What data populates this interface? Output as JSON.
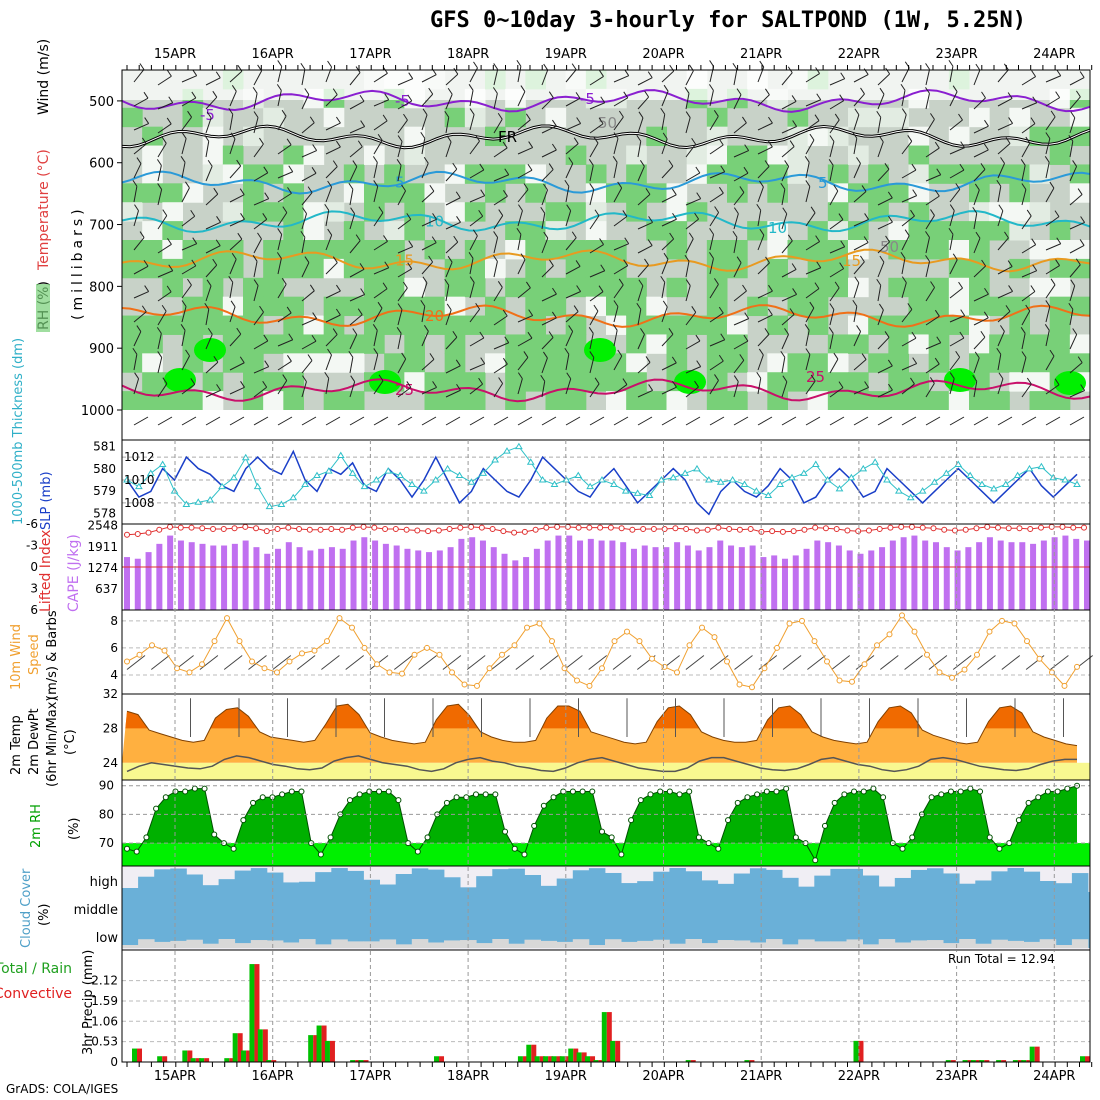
{
  "title": "GFS 0~10day 3-hourly for SALTPOND (1W, 5.25N)",
  "footer": "GrADS: COLA/IGES",
  "chart_data": [
    {
      "type": "heatmap",
      "panel": "upper-air",
      "ylabel": "(millibars)",
      "legend_labels": [
        "RH (%)",
        "Temperature (°C)",
        "Wind (m/s)"
      ],
      "y_ticks": [
        500,
        600,
        700,
        800,
        900,
        1000
      ],
      "ylim": [
        1000,
        450
      ],
      "x_labels": [
        "15APR",
        "16APR",
        "17APR",
        "18APR",
        "19APR",
        "20APR",
        "21APR",
        "22APR",
        "23APR",
        "24APR"
      ],
      "contour_labels": [
        "-5",
        "FR",
        "5",
        "10",
        "15",
        "20",
        "25",
        "50"
      ],
      "temperature_contours": [
        {
          "label": "-5",
          "level": 500,
          "color": "#8a1fd0"
        },
        {
          "label": "FR",
          "level": 558,
          "color": "#000000"
        },
        {
          "label": "5",
          "level": 632,
          "color": "#2a9ad8"
        },
        {
          "label": "10",
          "level": 695,
          "color": "#22b8c8"
        },
        {
          "label": "15",
          "level": 758,
          "color": "#e89a20"
        },
        {
          "label": "20",
          "level": 848,
          "color": "#f07018"
        },
        {
          "label": "25",
          "level": 968,
          "color": "#c8106a"
        }
      ]
    },
    {
      "type": "line",
      "panel": "slp-thickness",
      "ylabel": "1000-500mb Thickness (dm)",
      "ylabel2": "SLP (mb)",
      "y_ticks": [
        578,
        579,
        580,
        581
      ],
      "y2_ticks": [
        1008,
        1010,
        1012
      ],
      "series": [
        {
          "name": "SLP",
          "color": "#1a3fc8",
          "values": [
            1010,
            1008.5,
            1009,
            1011,
            1010,
            1012,
            1011,
            1010.5,
            1009.5,
            1009,
            1011,
            1012,
            1011,
            1010.5,
            1012.5,
            1010,
            1009,
            1011,
            1010.5,
            1011.5,
            1009.5,
            1009,
            1011,
            1010,
            1008.5,
            1010,
            1012,
            1010,
            1008,
            1009,
            1011,
            1010,
            1009,
            1008.5,
            1010,
            1012,
            1011,
            1010,
            1009,
            1008.5,
            1010,
            1011,
            1009.5,
            1008,
            1009,
            1010,
            1011,
            1010,
            1008,
            1007,
            1009,
            1010,
            1009,
            1008.5,
            1009.5,
            1011,
            1010,
            1008,
            1008.5,
            1010,
            1011,
            1010,
            1008.5,
            1009,
            1011,
            1010,
            1009,
            1008,
            1009,
            1010,
            1011,
            1010,
            1009,
            1008,
            1009,
            1010,
            1011,
            1009.5,
            1008.5,
            1009.5,
            1010.5
          ]
        },
        {
          "name": "Thickness",
          "color": "#30c0c8",
          "values": [
            579.5,
            579.2,
            579.8,
            580.2,
            579,
            578.4,
            578.5,
            578.6,
            579.2,
            579.6,
            580.5,
            579.2,
            578.3,
            578.4,
            578.7,
            579.3,
            579.7,
            579.9,
            580.6,
            579.8,
            579.2,
            579.5,
            579.9,
            579.7,
            579.3,
            579,
            579.5,
            580,
            579.7,
            579.4,
            579.8,
            580.4,
            580.8,
            581,
            580.3,
            579.5,
            579.3,
            579.5,
            579.7,
            579.2,
            579.5,
            579.3,
            579,
            578.9,
            578.8,
            579.5,
            579.6,
            579.8,
            580,
            579.5,
            579.4,
            579.5,
            579.3,
            579,
            578.8,
            579.3,
            579.6,
            579.8,
            580.2,
            579.5,
            579.1,
            579.6,
            580,
            580.3,
            579.5,
            579,
            578.7,
            579,
            579.4,
            579.8,
            580.2,
            579.7,
            579.3,
            579.1,
            579.3,
            579.7,
            580,
            580.1,
            579.6,
            579.5,
            579.3
          ]
        }
      ]
    },
    {
      "type": "bar",
      "panel": "cape-li",
      "ylabel": "CAPE (J/kg)",
      "ylabel2": "Lifted Index",
      "y_ticks": [
        637,
        1274,
        1911,
        2548
      ],
      "y2_ticks": [
        6,
        3,
        0,
        -3,
        -6
      ],
      "series": [
        {
          "name": "CAPE",
          "color": "#c070f0",
          "values": [
            1600,
            1550,
            1750,
            2000,
            2250,
            2100,
            2050,
            2000,
            1950,
            1950,
            2000,
            2100,
            1900,
            1700,
            1850,
            2050,
            1900,
            1800,
            1850,
            1900,
            1850,
            2100,
            2200,
            2100,
            2000,
            1950,
            1850,
            1800,
            1750,
            1800,
            1900,
            2150,
            2200,
            2100,
            1900,
            1700,
            1500,
            1600,
            1850,
            2100,
            2250,
            2250,
            2100,
            2150,
            2100,
            2100,
            2050,
            1850,
            1950,
            1900,
            1900,
            2050,
            1950,
            1800,
            1900,
            2100,
            1950,
            1900,
            1950,
            1600,
            1650,
            1550,
            1650,
            1850,
            2100,
            2050,
            1950,
            1800,
            1700,
            1800,
            1900,
            2100,
            2200,
            2250,
            2100,
            2050,
            1900,
            1800,
            1900,
            2050,
            2200,
            2100,
            2050,
            2050,
            2000,
            2100,
            2200,
            2250,
            2150,
            2100
          ]
        },
        {
          "name": "Lifted Index",
          "color": "#e03030",
          "values": [
            -4.5,
            -4.6,
            -4.8,
            -5.2,
            -5.6,
            -5.5,
            -5.5,
            -5.4,
            -5.3,
            -5.3,
            -5.4,
            -5.6,
            -5.4,
            -5,
            -5.3,
            -5.5,
            -5.3,
            -5.2,
            -5.2,
            -5.3,
            -5.2,
            -5.5,
            -5.6,
            -5.5,
            -5.3,
            -5.3,
            -5.2,
            -5.1,
            -5,
            -5.1,
            -5.3,
            -5.5,
            -5.6,
            -5.5,
            -5.3,
            -5,
            -4.8,
            -4.9,
            -5.2,
            -5.5,
            -5.6,
            -5.6,
            -5.5,
            -5.5,
            -5.5,
            -5.5,
            -5.4,
            -5.2,
            -5.3,
            -5.3,
            -5.3,
            -5.4,
            -5.3,
            -5.1,
            -5.2,
            -5.5,
            -5.3,
            -5.2,
            -5.3,
            -4.9,
            -5,
            -4.9,
            -5,
            -5.2,
            -5.5,
            -5.4,
            -5.3,
            -5.1,
            -5,
            -5.1,
            -5.3,
            -5.5,
            -5.6,
            -5.6,
            -5.5,
            -5.4,
            -5.2,
            -5.1,
            -5.2,
            -5.4,
            -5.6,
            -5.5,
            -5.4,
            -5.4,
            -5.3,
            -5.5,
            -5.6,
            -5.6,
            -5.5,
            -5.5
          ]
        }
      ]
    },
    {
      "type": "line",
      "panel": "10m-wind",
      "ylabel": "10m Wind Speed (m/s) & Barbs",
      "y_ticks": [
        4,
        6,
        8
      ],
      "series": [
        {
          "name": "10m Wind Speed",
          "color": "#f0a030",
          "values": [
            5,
            5.5,
            6.2,
            5.8,
            4.5,
            4.2,
            4.8,
            6.5,
            8.2,
            6.5,
            5,
            4.5,
            4.2,
            5,
            5.6,
            5.8,
            6.5,
            8.2,
            7.5,
            6,
            4.8,
            4.2,
            4.1,
            5.5,
            6,
            5.5,
            4.2,
            3.3,
            3.2,
            4.5,
            5.5,
            6.2,
            7.5,
            7.8,
            6.5,
            4.5,
            3.6,
            3.2,
            4.5,
            6.5,
            7.2,
            6.5,
            5.2,
            4.6,
            4.2,
            6.2,
            7.5,
            6.8,
            5,
            3.3,
            3.1,
            4.5,
            6,
            7.8,
            8,
            6.5,
            5,
            3.6,
            3.5,
            4.8,
            6.2,
            7,
            8.4,
            7.2,
            5.5,
            4.2,
            3.8,
            4.4,
            5.5,
            7.2,
            8,
            7.8,
            6.5,
            5.2,
            4.2,
            3.2,
            4.6
          ]
        }
      ]
    },
    {
      "type": "area",
      "panel": "2m-temp",
      "ylabel": "2m Temp 2m DewPt (6hr Min/Max) (°C)",
      "y_ticks": [
        24,
        28,
        32
      ],
      "ylim": [
        22,
        32
      ],
      "series": [
        {
          "name": "2m Temp",
          "color": "#f06a00",
          "values": [
            30,
            29.6,
            27.8,
            27.4,
            27,
            26.6,
            26.4,
            26.6,
            29.2,
            30.2,
            30.4,
            29.4,
            27.6,
            27,
            26.8,
            26.6,
            26.4,
            26.6,
            28.5,
            30.6,
            30.8,
            29.6,
            27.5,
            27,
            26.6,
            26.4,
            26.2,
            26.4,
            29,
            30.6,
            30.8,
            29.5,
            27.6,
            27,
            26.6,
            26.4,
            26.4,
            26.6,
            29.2,
            30.6,
            30.6,
            30,
            27.6,
            27.2,
            26.8,
            26.4,
            26.2,
            26.4,
            28.8,
            30.4,
            30.6,
            29.6,
            27.6,
            27,
            26.6,
            26.4,
            26.4,
            26.6,
            29,
            30.4,
            30.6,
            29.6,
            27.6,
            27,
            26.6,
            26.4,
            26.2,
            26.4,
            28.8,
            30.4,
            30.6,
            29.8,
            27.8,
            27.2,
            26.8,
            26.4,
            26.2,
            26.4,
            28.8,
            30.4,
            30.6,
            29.8,
            27.6,
            27,
            26.6,
            26.2,
            26
          ]
        },
        {
          "name": "2m DewPt",
          "color": "#555555",
          "values": [
            23,
            23.6,
            24,
            23.8,
            23.6,
            23.4,
            23.3,
            23.6,
            24.4,
            24.8,
            24.6,
            24.2,
            23.8,
            23.6,
            23.3,
            23.2,
            23.4,
            24.2,
            24.6,
            24.8,
            24.4,
            24,
            23.8,
            23.6,
            23.2,
            23,
            23.3,
            24,
            24.4,
            24.6,
            24.2,
            24,
            23.6,
            23.4,
            23.1,
            23,
            23.4,
            24,
            24.4,
            24.6,
            24.2,
            23.8,
            23.4,
            23.2,
            23,
            23,
            23.4,
            24.2,
            24.6,
            24.6,
            24.2,
            23.8,
            23.4,
            23.2,
            23.1,
            23.3,
            23.8,
            24.4,
            24.6,
            24.2,
            23.8,
            23.6,
            23.2,
            23,
            23.2,
            23.6,
            24.4,
            24.6,
            24.4,
            24,
            23.6,
            23.4,
            23.2,
            23.1,
            23.3,
            23.8,
            24.2,
            24.4,
            24.4
          ]
        }
      ]
    },
    {
      "type": "area",
      "panel": "2m-rh",
      "ylabel": "2m RH (%)",
      "y_ticks": [
        70,
        80,
        90
      ],
      "ylim": [
        62,
        92
      ],
      "series": [
        {
          "name": "2m RH",
          "color": "#00b000",
          "values": [
            68,
            67,
            72,
            82,
            86,
            88,
            88,
            89,
            89,
            73,
            70,
            68,
            78,
            84,
            86,
            86,
            87,
            88,
            88,
            70,
            66,
            72,
            80,
            85,
            87,
            88,
            88,
            88,
            85,
            70,
            67,
            72,
            80,
            84,
            86,
            86,
            87,
            87,
            87,
            74,
            68,
            66,
            76,
            83,
            86,
            88,
            88,
            88,
            88,
            74,
            72,
            66,
            78,
            85,
            87,
            88,
            88,
            87,
            88,
            72,
            70,
            68,
            78,
            84,
            86,
            87,
            88,
            88,
            89,
            72,
            70,
            64,
            76,
            84,
            87,
            88,
            88,
            89,
            86,
            70,
            68,
            72,
            80,
            86,
            87,
            88,
            88,
            89,
            88,
            72,
            68,
            70,
            78,
            84,
            86,
            88,
            88,
            89,
            90
          ]
        }
      ]
    },
    {
      "type": "bar",
      "panel": "cloud-cover",
      "ylabel": "Cloud Cover (%)",
      "categories": [
        "high",
        "middle",
        "low"
      ]
    },
    {
      "type": "bar",
      "panel": "precip",
      "ylabel": "3hr Precip (mm)",
      "legend_labels": [
        "Total / Rain",
        "Convective"
      ],
      "y_ticks": [
        0,
        0.53,
        1.06,
        1.59,
        2.12
      ],
      "annotation": "Run Total = 12.94",
      "x_labels": [
        "15APR",
        "16APR",
        "17APR",
        "18APR",
        "19APR",
        "20APR",
        "21APR",
        "22APR",
        "23APR",
        "24APR"
      ],
      "series": [
        {
          "name": "Total / Rain",
          "color": "#00c000",
          "values": [
            0.35,
            0,
            0,
            0.15,
            0,
            0,
            0.3,
            0.1,
            0.1,
            0,
            0,
            0.1,
            0.75,
            0.3,
            2.55,
            0.85,
            0.05,
            0,
            0,
            0,
            0,
            0.7,
            0.95,
            0.55,
            0,
            0,
            0.05,
            0.05,
            0,
            0,
            0,
            0,
            0,
            0,
            0,
            0,
            0.15,
            0,
            0,
            0,
            0,
            0,
            0,
            0,
            0,
            0,
            0.15,
            0.45,
            0.15,
            0.15,
            0.15,
            0.15,
            0.35,
            0.25,
            0.15,
            0.05,
            1.3,
            0.55,
            0,
            0,
            0,
            0,
            0,
            0,
            0,
            0,
            0.05,
            0,
            0,
            0,
            0,
            0,
            0,
            0.05,
            0,
            0,
            0,
            0,
            0,
            0,
            0,
            0,
            0,
            0,
            0,
            0,
            0.55,
            0,
            0,
            0,
            0,
            0,
            0,
            0,
            0,
            0,
            0,
            0.05,
            0,
            0.05,
            0.05,
            0.05,
            0,
            0.05,
            0,
            0.05,
            0.05,
            0.4,
            0,
            0,
            0,
            0,
            0,
            0.15
          ]
        },
        {
          "name": "Convective",
          "color": "#e02020"
        }
      ]
    }
  ]
}
